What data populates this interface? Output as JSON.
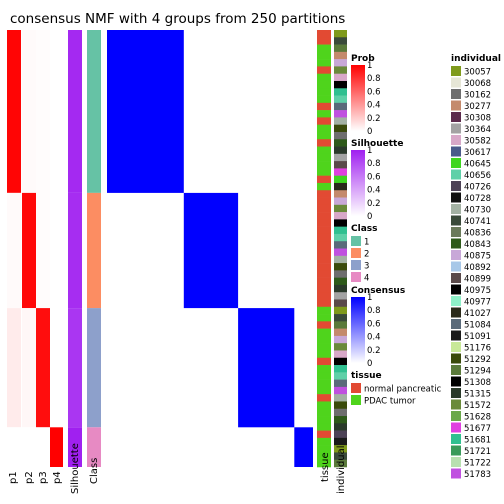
{
  "chart_data": {
    "type": "heatmap",
    "title": "consensus NMF with 4 groups from 250 partitions",
    "column_labels": {
      "p1": "p1",
      "p2": "p2",
      "p3": "p3",
      "p4": "p4",
      "silhouette": "Silhouette",
      "class": "Class",
      "tissue": "tissue",
      "individual": "individual"
    },
    "groups": [
      {
        "class": "1",
        "n": 41,
        "p": [
          0.98,
          0.02,
          0.01,
          0.0
        ],
        "silhouette": 0.96
      },
      {
        "class": "2",
        "n": 29,
        "p": [
          0.02,
          0.97,
          0.01,
          0.0
        ],
        "silhouette": 0.94
      },
      {
        "class": "3",
        "n": 30,
        "p": [
          0.08,
          0.03,
          0.95,
          0.0
        ],
        "silhouette": 0.9
      },
      {
        "class": "4",
        "n": 10,
        "p": [
          0.0,
          0.0,
          0.0,
          1.0
        ],
        "silhouette": 1.0
      }
    ],
    "consensus": {
      "within_class": 1.0,
      "between_class": 0.0
    },
    "legends": {
      "prob": {
        "title": "Prob",
        "ticks": [
          "1",
          "0.8",
          "0.6",
          "0.4",
          "0.2",
          "0"
        ],
        "colors": [
          "#ff0000",
          "#ffffff"
        ]
      },
      "silhouette": {
        "title": "Silhouette",
        "ticks": [
          "1",
          "0.8",
          "0.6",
          "0.4",
          "0.2",
          "0"
        ],
        "colors": [
          "#a020f0",
          "#ffffff"
        ]
      },
      "class": {
        "title": "Class",
        "items": [
          {
            "label": "1",
            "color": "#66c2a5"
          },
          {
            "label": "2",
            "color": "#fc8d62"
          },
          {
            "label": "3",
            "color": "#8da0cb"
          },
          {
            "label": "4",
            "color": "#e78ac3"
          }
        ]
      },
      "consensus": {
        "title": "Consensus",
        "ticks": [
          "1",
          "0.8",
          "0.6",
          "0.4",
          "0.2",
          "0"
        ],
        "colors": [
          "#0000ff",
          "#ffffff"
        ]
      },
      "tissue": {
        "title": "tissue",
        "items": [
          {
            "label": "normal pancreatic",
            "color": "#e24a33"
          },
          {
            "label": "PDAC tumor",
            "color": "#4fd41c"
          }
        ]
      },
      "individual": {
        "title": "individual",
        "items": [
          {
            "label": "30057",
            "color": "#7f9a1c"
          },
          {
            "label": "30068",
            "color": "#e6e6d6"
          },
          {
            "label": "30162",
            "color": "#6e6e6e"
          },
          {
            "label": "30277",
            "color": "#c48a6c"
          },
          {
            "label": "30308",
            "color": "#5c2a4c"
          },
          {
            "label": "30364",
            "color": "#a3a3a3"
          },
          {
            "label": "30582",
            "color": "#d8a8c8"
          },
          {
            "label": "30617",
            "color": "#4a5a8a"
          },
          {
            "label": "40645",
            "color": "#3ed61e"
          },
          {
            "label": "40656",
            "color": "#5fd0a8"
          },
          {
            "label": "40726",
            "color": "#4d4256"
          },
          {
            "label": "40728",
            "color": "#101010"
          },
          {
            "label": "40730",
            "color": "#a3b1a3"
          },
          {
            "label": "40741",
            "color": "#3a4a3a"
          },
          {
            "label": "40836",
            "color": "#6a7a5a"
          },
          {
            "label": "40843",
            "color": "#2e5a1a"
          },
          {
            "label": "40875",
            "color": "#c8a8d8"
          },
          {
            "label": "40892",
            "color": "#a8c8e8"
          },
          {
            "label": "40899",
            "color": "#5a4a4a"
          },
          {
            "label": "40975",
            "color": "#000000"
          },
          {
            "label": "40977",
            "color": "#8ff0c8"
          },
          {
            "label": "41027",
            "color": "#2a2a1a"
          },
          {
            "label": "51084",
            "color": "#5a6a7a"
          },
          {
            "label": "51091",
            "color": "#1a1a1a"
          },
          {
            "label": "51176",
            "color": "#c8e898"
          },
          {
            "label": "51292",
            "color": "#3a4a0a"
          },
          {
            "label": "51294",
            "color": "#5a7a3a"
          },
          {
            "label": "51308",
            "color": "#000000"
          },
          {
            "label": "51315",
            "color": "#2a3a2a"
          },
          {
            "label": "51572",
            "color": "#6a8a3a"
          },
          {
            "label": "51628",
            "color": "#6aa84a"
          },
          {
            "label": "51677",
            "color": "#e040e0"
          },
          {
            "label": "51681",
            "color": "#30c090"
          },
          {
            "label": "51721",
            "color": "#3a9a5a"
          },
          {
            "label": "51722",
            "color": "#b8e0b0"
          },
          {
            "label": "51783",
            "color": "#c050e0"
          }
        ]
      }
    }
  }
}
